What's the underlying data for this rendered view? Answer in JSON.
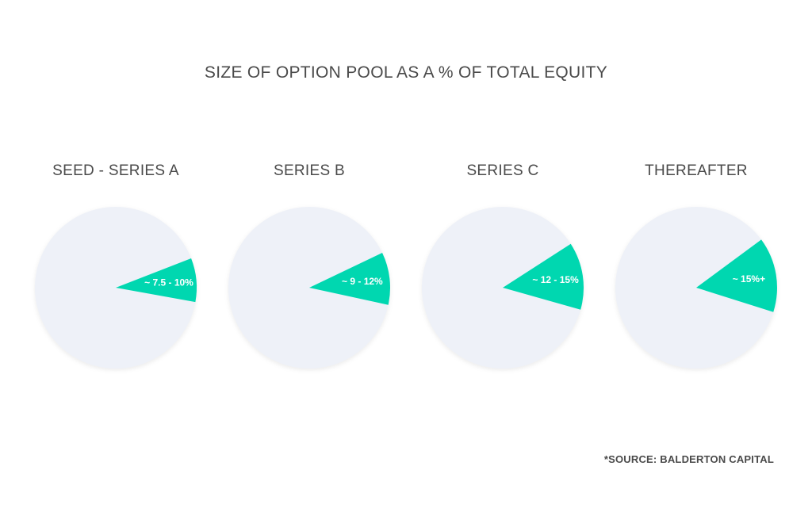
{
  "chart_data": {
    "type": "pie",
    "title": "SIZE OF OPTION POOL AS A % OF TOTAL EQUITY",
    "pie_color": "#eef1f8",
    "slice_color": "#00d7b0",
    "charts": [
      {
        "category": "SEED - SERIES A",
        "slice_label": "~ 7.5 - 10%",
        "value_pct": 8.75
      },
      {
        "category": "SERIES B",
        "slice_label": "~ 9 - 12%",
        "value_pct": 10.5
      },
      {
        "category": "SERIES C",
        "slice_label": "~ 12 - 15%",
        "value_pct": 13.5
      },
      {
        "category": "THEREAFTER",
        "slice_label": "~ 15%+",
        "value_pct": 15
      }
    ]
  },
  "footer": {
    "source": "*SOURCE: BALDERTON CAPITAL"
  }
}
